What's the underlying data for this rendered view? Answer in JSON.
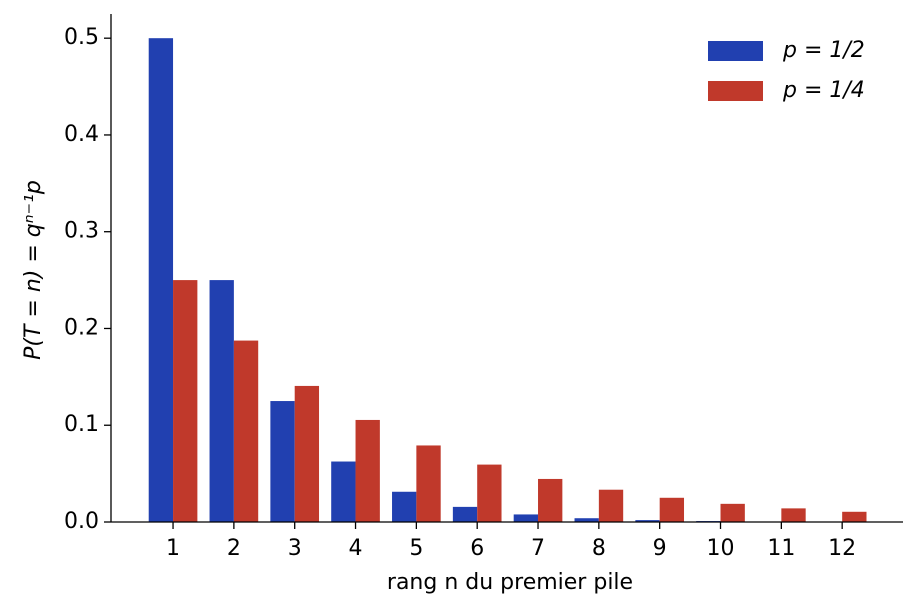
{
  "chart_data": {
    "type": "bar",
    "ylabel": "P(T = n) = qⁿ⁻¹p",
    "xlabel": "rang n du premier pile",
    "x": [
      1,
      2,
      3,
      4,
      5,
      6,
      7,
      8,
      9,
      10,
      11,
      12
    ],
    "series": [
      {
        "name": "p = 1/2",
        "color": "#2140b0",
        "values": [
          0.5,
          0.25,
          0.125,
          0.0625,
          0.03125,
          0.015625,
          0.0078125,
          0.00390625,
          0.001953125,
          0.0009765625,
          0.00048828125,
          0.000244140625
        ]
      },
      {
        "name": "p = 1/4",
        "color": "#c0392b",
        "values": [
          0.25,
          0.1875,
          0.140625,
          0.10546875,
          0.0791015625,
          0.059326171875,
          0.04449462890625,
          0.0333709716796875,
          0.025028228759765625,
          0.01877117156982422,
          0.014078378677368164,
          0.010558784008026123
        ]
      }
    ],
    "xlim": [
      -0.02,
      13
    ],
    "ylim": [
      0,
      0.525
    ],
    "yticks": [
      {
        "value": 0,
        "label": "0.0"
      },
      0.1,
      0.2,
      0.3,
      0.4,
      0.5
    ],
    "grid": false,
    "legend": "upper right"
  }
}
